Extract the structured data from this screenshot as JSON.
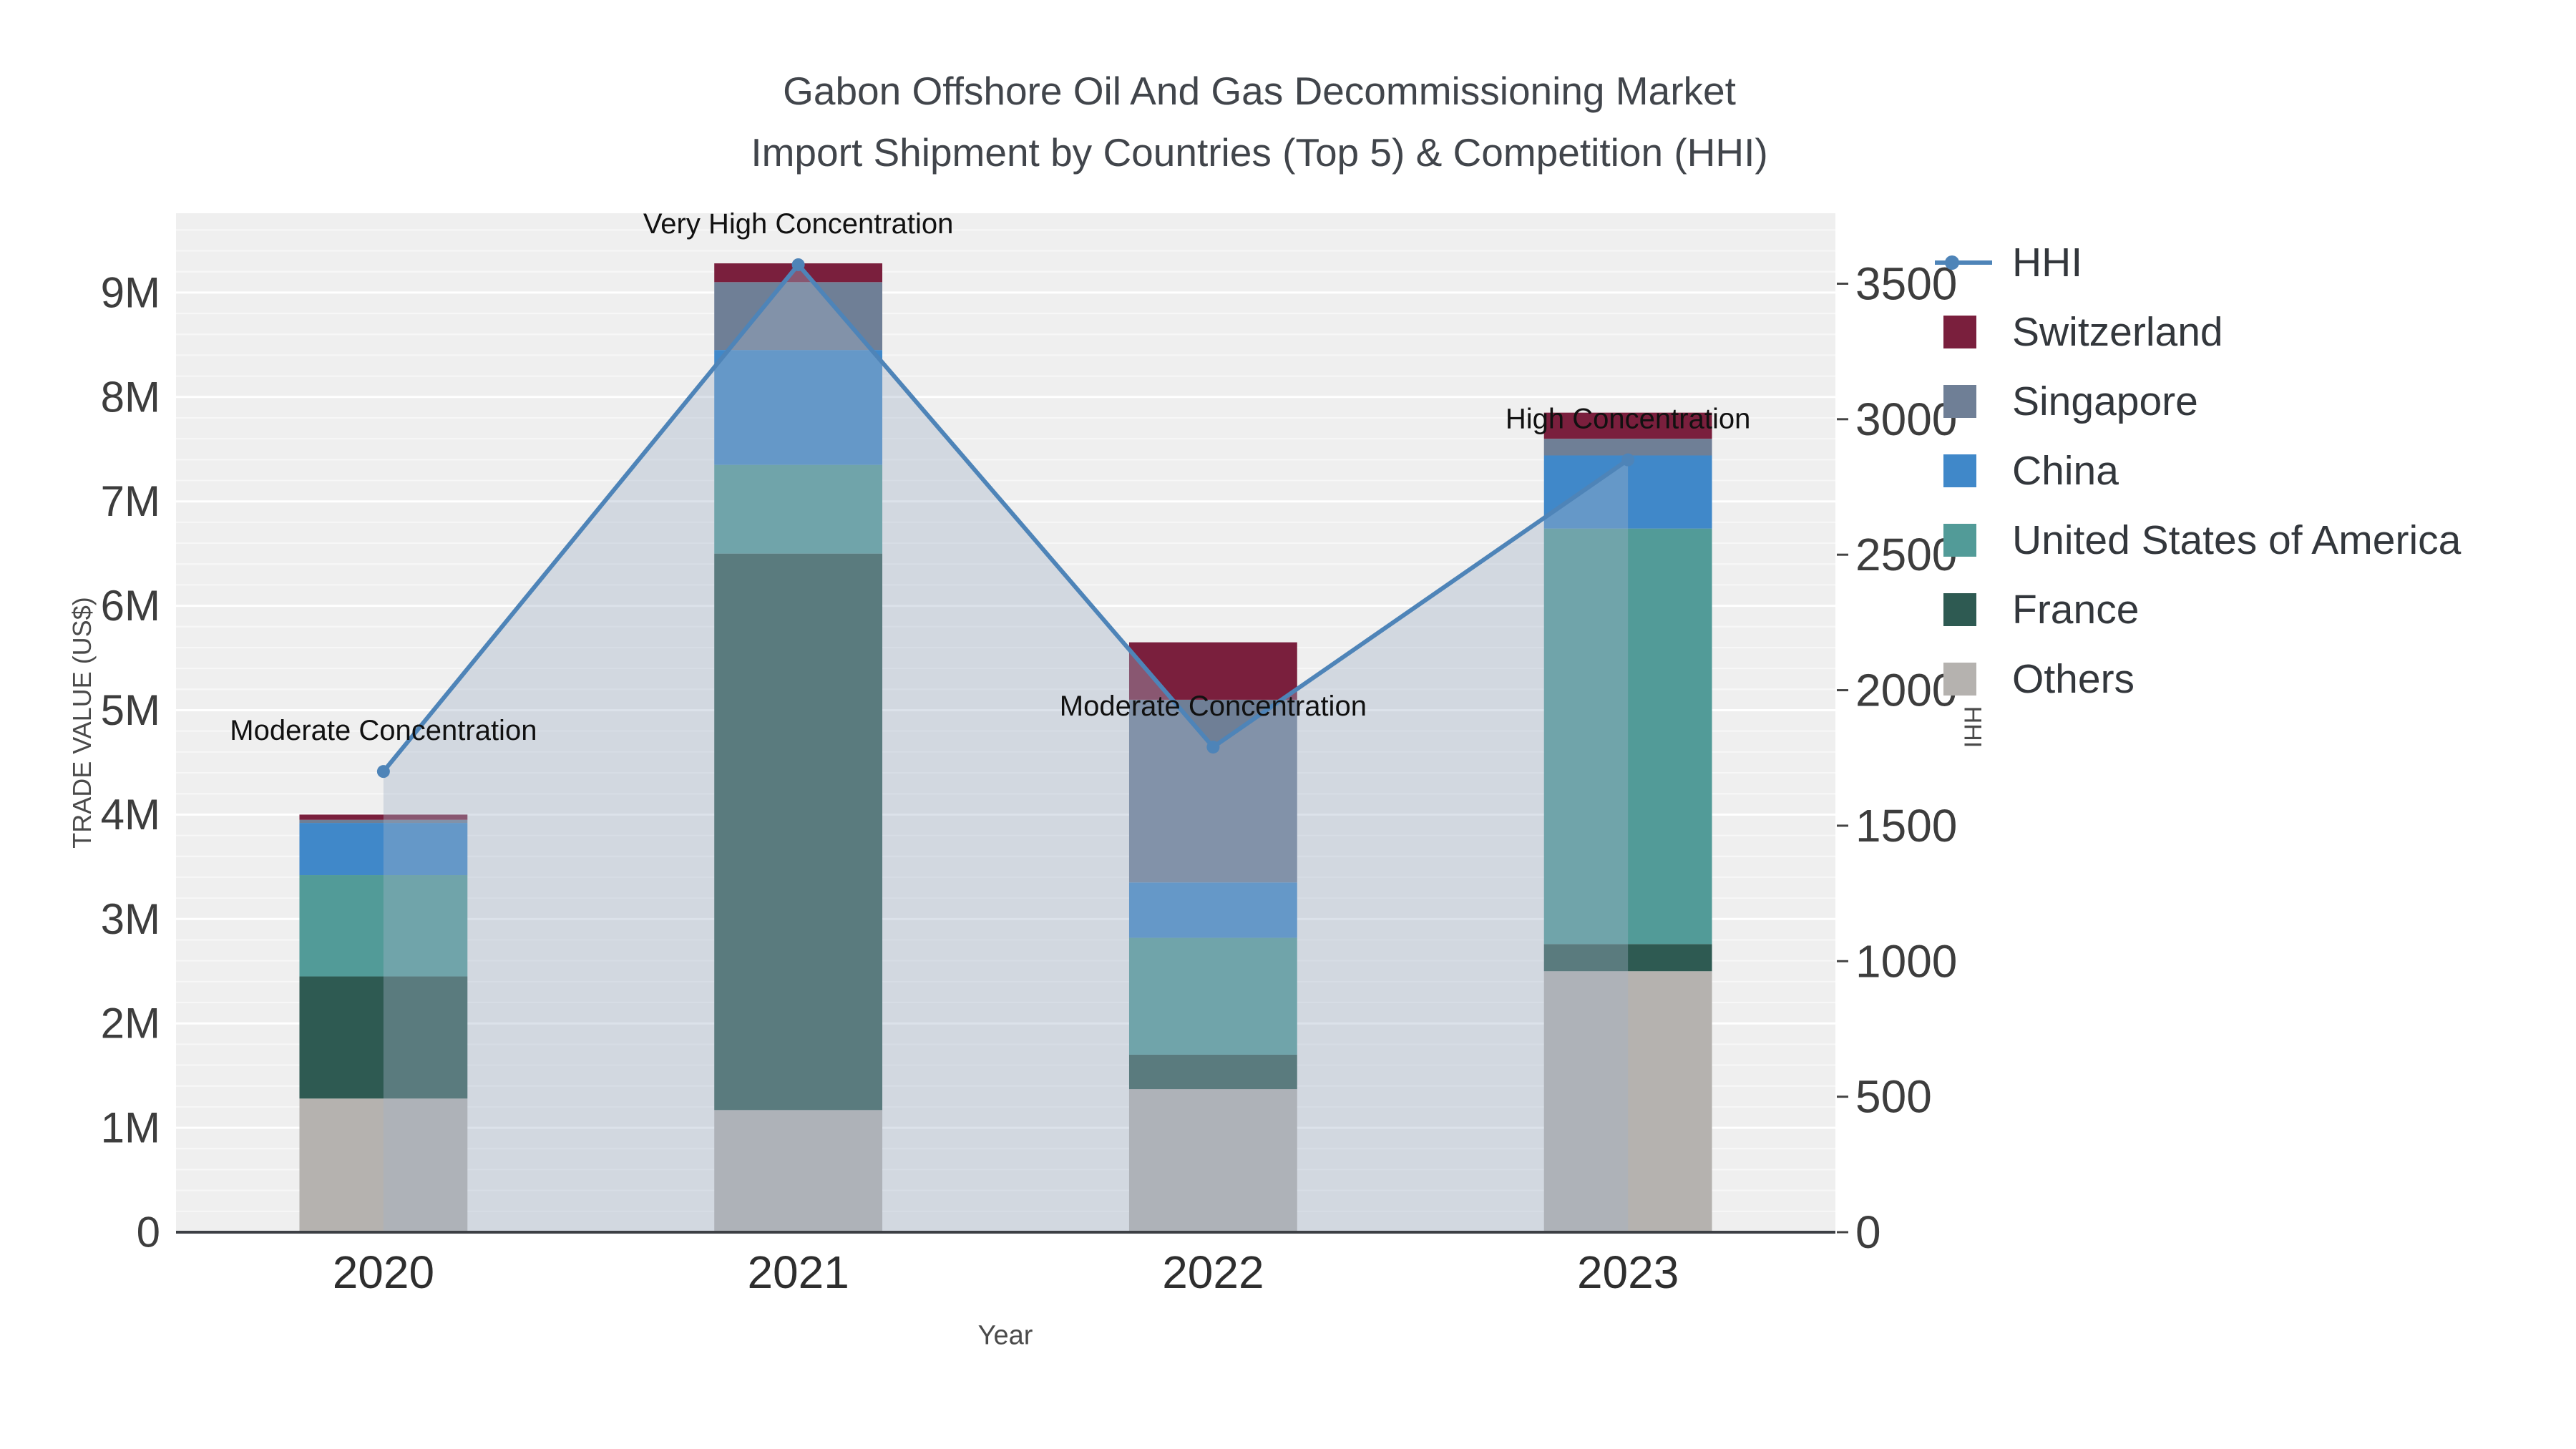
{
  "chart_data": {
    "type": "bar",
    "title_lines": [
      "Gabon Offshore Oil And Gas Decommissioning Market",
      "Import Shipment by Countries (Top 5) & Competition (HHI)"
    ],
    "xlabel": "Year",
    "ylabel_left": "TRADE VALUE (US$)",
    "ylabel_right": "HHI",
    "categories": [
      "2020",
      "2021",
      "2022",
      "2023"
    ],
    "series": [
      {
        "name": "Others",
        "color": "#b5b2af",
        "values": [
          1280000,
          1170000,
          1370000,
          2500000
        ]
      },
      {
        "name": "France",
        "color": "#2e5a52",
        "values": [
          1170000,
          5330000,
          330000,
          260000
        ]
      },
      {
        "name": "United States of America",
        "color": "#529b98",
        "values": [
          970000,
          850000,
          1120000,
          3980000
        ]
      },
      {
        "name": "China",
        "color": "#4088c9",
        "values": [
          500000,
          1100000,
          530000,
          700000
        ]
      },
      {
        "name": "Singapore",
        "color": "#6f7f96",
        "values": [
          30000,
          650000,
          1750000,
          160000
        ]
      },
      {
        "name": "Switzerland",
        "color": "#7a1f3d",
        "values": [
          50000,
          180000,
          550000,
          250000
        ]
      }
    ],
    "hhi": {
      "name": "HHI",
      "color": "#4e84b8",
      "fill": "rgba(164,180,200,0.38)",
      "values": [
        1700,
        3570,
        1790,
        2850
      ]
    },
    "annotations": [
      {
        "x": "2020",
        "text": "Moderate Concentration"
      },
      {
        "x": "2021",
        "text": "Very High Concentration"
      },
      {
        "x": "2022",
        "text": "Moderate Concentration"
      },
      {
        "x": "2023",
        "text": "High Concentration"
      }
    ],
    "yaxis_left": {
      "max": 9760000,
      "ticks": [
        0,
        1000000,
        2000000,
        3000000,
        4000000,
        5000000,
        6000000,
        7000000,
        8000000,
        9000000
      ],
      "labels": [
        "0",
        "1M",
        "2M",
        "3M",
        "4M",
        "5M",
        "6M",
        "7M",
        "8M",
        "9M"
      ]
    },
    "yaxis_right": {
      "max": 3760,
      "ticks": [
        0,
        500,
        1000,
        1500,
        2000,
        2500,
        3000,
        3500
      ],
      "labels": [
        "0",
        "500",
        "1000",
        "1500",
        "2000",
        "2500",
        "3000",
        "3500"
      ]
    },
    "legend": [
      {
        "label": "HHI",
        "type": "line",
        "color": "#4e84b8"
      },
      {
        "label": "Switzerland",
        "type": "square",
        "color": "#7a1f3d"
      },
      {
        "label": "Singapore",
        "type": "square",
        "color": "#6f7f96"
      },
      {
        "label": "China",
        "type": "square",
        "color": "#4088c9"
      },
      {
        "label": "United States of America",
        "type": "square",
        "color": "#529b98"
      },
      {
        "label": "France",
        "type": "square",
        "color": "#2e5a52"
      },
      {
        "label": "Others",
        "type": "square",
        "color": "#b5b2af"
      }
    ],
    "plot_bg": "#efefef"
  }
}
